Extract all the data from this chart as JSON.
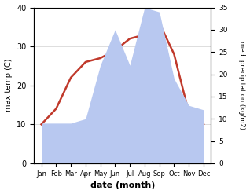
{
  "months": [
    "Jan",
    "Feb",
    "Mar",
    "Apr",
    "May",
    "Jun",
    "Jul",
    "Aug",
    "Sep",
    "Oct",
    "Nov",
    "Dec"
  ],
  "temperature": [
    10,
    14,
    22,
    26,
    27,
    29,
    32,
    33,
    36,
    28,
    13,
    10
  ],
  "precipitation": [
    9,
    9,
    9,
    10,
    22,
    30,
    22,
    35,
    34,
    19,
    13,
    12
  ],
  "temp_color": "#c0392b",
  "precip_color": "#b8c8f0",
  "background_color": "#ffffff",
  "xlabel": "date (month)",
  "ylabel_left": "max temp (C)",
  "ylabel_right": "med. precipitation (kg/m2)",
  "ylim_left": [
    0,
    40
  ],
  "ylim_right": [
    0,
    35
  ],
  "yticks_left": [
    0,
    10,
    20,
    30,
    40
  ],
  "yticks_right": [
    0,
    5,
    10,
    15,
    20,
    25,
    30,
    35
  ]
}
